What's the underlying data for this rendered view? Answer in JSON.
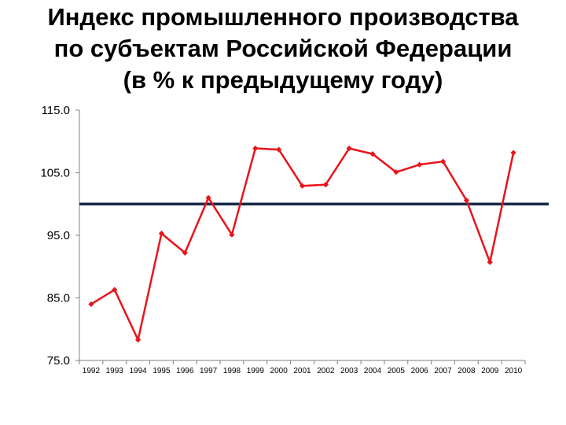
{
  "chart_data": {
    "type": "line",
    "title_lines": [
      "Индекс промышленного производства",
      "по субъектам Российской Федерации",
      "(в % к предыдущему году)"
    ],
    "categories": [
      "1992",
      "1993",
      "1994",
      "1995",
      "1996",
      "1997",
      "1998",
      "1999",
      "2000",
      "2001",
      "2002",
      "2003",
      "2004",
      "2005",
      "2006",
      "2007",
      "2008",
      "2009",
      "2010"
    ],
    "values": [
      84.0,
      86.3,
      78.3,
      95.3,
      92.2,
      101.0,
      95.1,
      108.9,
      108.7,
      102.9,
      103.1,
      108.9,
      108.0,
      105.1,
      106.3,
      106.8,
      100.6,
      90.7,
      108.2
    ],
    "ylim": [
      75,
      115
    ],
    "yticks": [
      "75.0",
      "85.0",
      "95.0",
      "105.0",
      "115.0"
    ],
    "reference_line": 100,
    "grid": false,
    "colors": {
      "series": "#e8141b",
      "reference": "#17294a",
      "axis": "#808080"
    }
  }
}
